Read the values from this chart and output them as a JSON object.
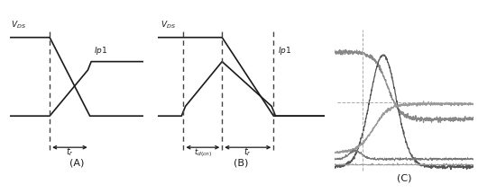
{
  "line_color": "#1a1a1a",
  "dash_color": "#444444",
  "fig_width": 5.3,
  "fig_height": 2.15,
  "panel_A_label": "(A)",
  "panel_B_label": "(B)",
  "panel_C_label": "(C)"
}
